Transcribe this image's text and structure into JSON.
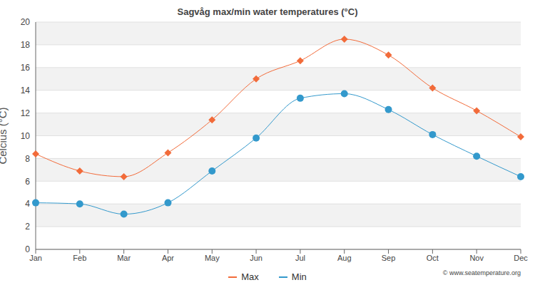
{
  "chart_data": {
    "type": "line",
    "title": "Sagvåg max/min water temperatures (°C)",
    "y_label": "Celcius (°C)",
    "categories": [
      "Jan",
      "Feb",
      "Mar",
      "Apr",
      "May",
      "Jun",
      "Jul",
      "Aug",
      "Sep",
      "Oct",
      "Nov",
      "Dec"
    ],
    "series": [
      {
        "name": "Max",
        "color": "#f26b3a",
        "marker": "diamond",
        "line_style": "solid",
        "values": [
          8.4,
          6.9,
          6.4,
          8.5,
          11.4,
          15.0,
          16.6,
          18.5,
          17.1,
          14.2,
          12.2,
          9.9
        ]
      },
      {
        "name": "Min",
        "color": "#3399cc",
        "marker": "circle",
        "line_style": "solid",
        "values": [
          4.1,
          4.0,
          3.1,
          4.1,
          6.9,
          9.8,
          13.3,
          13.7,
          12.3,
          10.1,
          8.2,
          6.4
        ]
      }
    ],
    "ylim": [
      0,
      20
    ],
    "yticks": [
      0,
      2,
      4,
      6,
      8,
      10,
      12,
      14,
      16,
      18,
      20
    ],
    "grid": true,
    "legend": "bottom",
    "annotations": [
      "© www.seatemperature.org"
    ]
  }
}
